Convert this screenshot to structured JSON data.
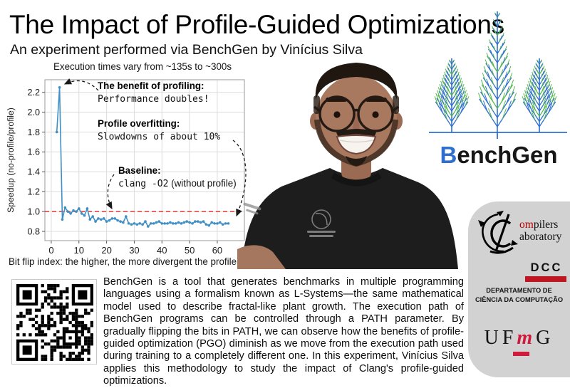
{
  "page": {
    "title": "The Impact of Profile-Guided Optimizations",
    "subtitle": "An experiment performed via BenchGen by Vinícius Silva"
  },
  "chart": {
    "title": "Execution times vary from ~135s to ~300s",
    "xlabel": "Bit flip index: the higher, the more divergent the profile",
    "ylabel": "Speedup (no-profile/profile)",
    "annotations": [
      {
        "title": "The benefit of profiling:",
        "body": "Performance doubles!"
      },
      {
        "title": "Profile overfitting:",
        "body": "Slowdowns of about 10%"
      },
      {
        "title": "Baseline:",
        "body_mono": "clang -O2",
        "body_suffix": " (without profile)"
      }
    ]
  },
  "chart_data": {
    "type": "line",
    "title": "Execution times vary from ~135s to ~300s",
    "xlabel": "Bit flip index: the higher, the more divergent the profile",
    "ylabel": "Speedup (no-profile/profile)",
    "x": [
      2,
      3,
      4,
      5,
      6,
      7,
      8,
      9,
      10,
      11,
      12,
      13,
      14,
      15,
      16,
      17,
      18,
      19,
      20,
      21,
      22,
      23,
      24,
      25,
      26,
      27,
      28,
      29,
      30,
      31,
      32,
      33,
      34,
      35,
      36,
      37,
      38,
      39,
      40,
      41,
      42,
      43,
      44,
      45,
      46,
      47,
      48,
      49,
      50,
      51,
      52,
      53,
      54,
      55,
      56,
      57,
      58,
      59,
      60,
      61,
      62,
      63,
      64
    ],
    "y": [
      1.8,
      2.25,
      0.92,
      1.04,
      1.0,
      0.98,
      1.01,
      1.0,
      1.03,
      0.98,
      0.96,
      1.03,
      0.92,
      0.95,
      0.9,
      0.93,
      0.92,
      0.93,
      0.9,
      0.91,
      0.93,
      0.93,
      0.91,
      0.9,
      0.89,
      0.95,
      0.88,
      0.87,
      0.88,
      0.87,
      0.88,
      0.87,
      0.9,
      0.85,
      0.88,
      0.88,
      0.89,
      0.9,
      0.88,
      0.88,
      0.88,
      0.89,
      0.88,
      0.88,
      0.89,
      0.88,
      0.89,
      0.9,
      0.89,
      0.88,
      0.9,
      0.9,
      0.89,
      0.9,
      0.87,
      0.86,
      0.89,
      0.88,
      0.88,
      0.89,
      0.87,
      0.88,
      0.88
    ],
    "xticks": [
      0,
      10,
      20,
      30,
      40,
      50,
      60
    ],
    "yticks": [
      0.8,
      1.0,
      1.2,
      1.4,
      1.6,
      1.8,
      2.0,
      2.2
    ],
    "xlim": [
      -2.3,
      69.8
    ],
    "ylim": [
      0.707,
      2.327
    ],
    "grid": true,
    "legend": "none",
    "baseline_y": 1.0,
    "line_color": "#3f8fc5",
    "baseline_color": "#e53935"
  },
  "benchgen": {
    "logo_b": "B",
    "logo_rest": "enchGen"
  },
  "panel": {
    "compilers_lab": {
      "red": "om",
      "rest": "pilers",
      "line2": "aboratory"
    },
    "dcc": {
      "acronym": "DCC",
      "dept_line1": "DEPARTAMENTO DE",
      "dept_line2": "CIÊNCIA DA COMPUTAÇÃO"
    },
    "ufmg": {
      "u": "U",
      "f": "F",
      "m": "m",
      "g": "G"
    }
  },
  "description": "BenchGen is a tool that generates benchmarks in multiple programming languages using a formalism known as L-Systems—the same mathematical model used to describe fractal-like plant growth. The execution path of BenchGen programs can be controlled through a PATH parameter. By gradually flipping the bits in PATH, we can observe how the benefits of profile-guided optimization (PGO) diminish as we move from the execution path used during training to a completely different one. In this experiment, Vinícius Silva applies this methodology to study the impact of Clang's profile-guided optimizations.",
  "colors": {
    "chart_line": "#3f8fc5",
    "baseline_red": "#e53935",
    "tree_blue": "#2f6fd0",
    "tree_green": "#57b94f",
    "logo_b_blue": "#2f6fd0",
    "dcc_red": "#c01622",
    "ufmg_red": "#d01b3c",
    "complab_red": "#b00000",
    "panel_gray": "#d2d2d2"
  }
}
